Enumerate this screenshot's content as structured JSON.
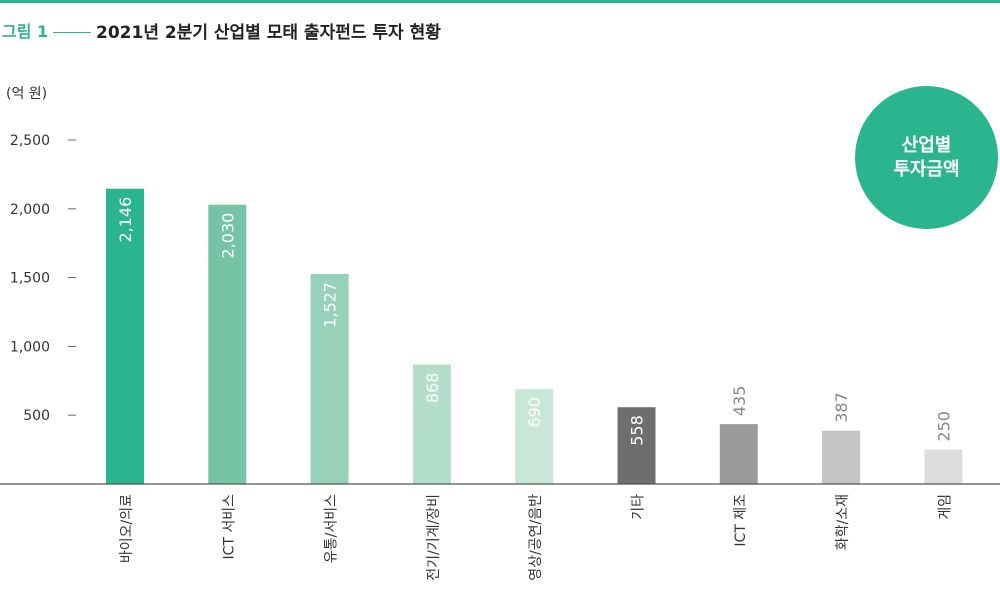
{
  "header": {
    "figure_label": "그림 1",
    "title": "2021년 2분기 산업별 모태 출자펀드 투자 현황"
  },
  "unit_label": "(억 원)",
  "badge": {
    "text": "산업별 투자금액"
  },
  "colors": {
    "accent": "#2bb58f"
  },
  "chart_data": {
    "type": "bar",
    "title": "2021년 2분기 산업별 모태 출자펀드 투자 현황",
    "ylabel": "(억 원)",
    "ylim": [
      0,
      2500
    ],
    "yticks": [
      500,
      1000,
      1500,
      2000,
      2500
    ],
    "ytick_labels": [
      "500",
      "1,000",
      "1,500",
      "2,000",
      "2,500"
    ],
    "grid": false,
    "categories": [
      "바이오/의료",
      "ICT 서비스",
      "유통/서비스",
      "전기/기계/장비",
      "영상/공연/음반",
      "기타",
      "ICT 제조",
      "화학/소재",
      "게임"
    ],
    "values": [
      2146,
      2030,
      1527,
      868,
      690,
      558,
      435,
      387,
      250
    ],
    "value_labels": [
      "2,146",
      "2,030",
      "1,527",
      "868",
      "690",
      "558",
      "435",
      "387",
      "250"
    ],
    "bar_colors": [
      "#2bb58f",
      "#76c4a6",
      "#97d1b9",
      "#b4decc",
      "#c9e7d8",
      "#6e6e6e",
      "#9b9b9b",
      "#c4c4c4",
      "#dcdcdc"
    ]
  }
}
